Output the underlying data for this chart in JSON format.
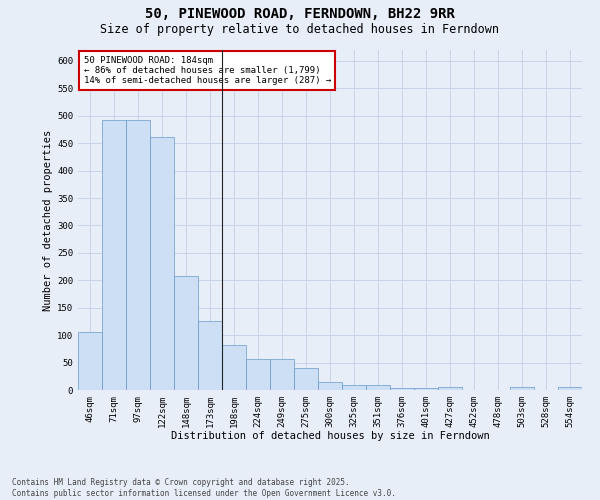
{
  "title": "50, PINEWOOD ROAD, FERNDOWN, BH22 9RR",
  "subtitle": "Size of property relative to detached houses in Ferndown",
  "xlabel": "Distribution of detached houses by size in Ferndown",
  "ylabel": "Number of detached properties",
  "categories": [
    "46sqm",
    "71sqm",
    "97sqm",
    "122sqm",
    "148sqm",
    "173sqm",
    "198sqm",
    "224sqm",
    "249sqm",
    "275sqm",
    "300sqm",
    "325sqm",
    "351sqm",
    "376sqm",
    "401sqm",
    "427sqm",
    "452sqm",
    "478sqm",
    "503sqm",
    "528sqm",
    "554sqm"
  ],
  "values": [
    106,
    493,
    493,
    461,
    207,
    125,
    82,
    57,
    57,
    40,
    14,
    10,
    10,
    3,
    3,
    6,
    0,
    0,
    6,
    0,
    6
  ],
  "bar_color": "#ccdff5",
  "bar_edge_color": "#6699cc",
  "grid_color": "#c8d4e8",
  "background_color": "#e8eef8",
  "annotation_text": "50 PINEWOOD ROAD: 184sqm\n← 86% of detached houses are smaller (1,799)\n14% of semi-detached houses are larger (287) →",
  "annotation_box_facecolor": "#ffffff",
  "annotation_box_edgecolor": "#cc0000",
  "vline_x": 5.5,
  "ylim": [
    0,
    620
  ],
  "yticks": [
    0,
    50,
    100,
    150,
    200,
    250,
    300,
    350,
    400,
    450,
    500,
    550,
    600
  ],
  "footer_line1": "Contains HM Land Registry data © Crown copyright and database right 2025.",
  "footer_line2": "Contains public sector information licensed under the Open Government Licence v3.0.",
  "title_fontsize": 10,
  "subtitle_fontsize": 8.5,
  "axis_label_fontsize": 7.5,
  "tick_fontsize": 6.5,
  "annotation_fontsize": 6.5,
  "footer_fontsize": 5.5
}
